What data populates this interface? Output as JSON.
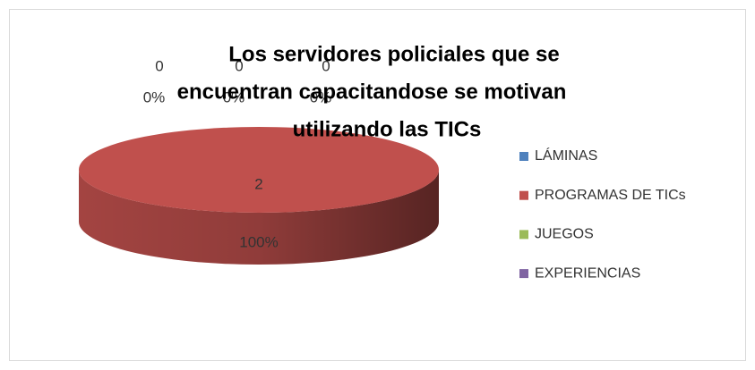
{
  "chart_data": {
    "type": "pie",
    "title": [
      "Los servidores policiales que se",
      "encuentran capacitandose  se motivan",
      "utilizando las TICs"
    ],
    "categories": [
      "LÁMINAS",
      "PROGRAMAS DE TICs",
      "JUEGOS",
      "EXPERIENCIAS"
    ],
    "values": [
      0,
      2,
      0,
      0
    ],
    "percentages": [
      0,
      100,
      0,
      0
    ],
    "percentage_labels": [
      "0%",
      "100%",
      "0%",
      "0%"
    ],
    "colors": [
      "#4f81bd",
      "#c0504d",
      "#9bbb59",
      "#8064a2"
    ],
    "legend": "right"
  }
}
